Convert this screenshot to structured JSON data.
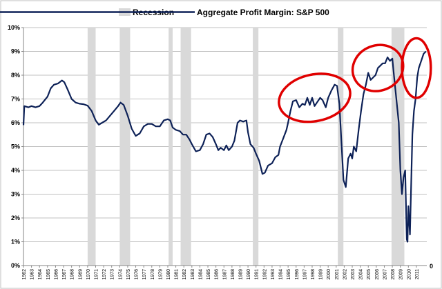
{
  "chart_data": {
    "type": "line",
    "title": "",
    "xlabel": "",
    "ylabel": "",
    "legend": {
      "placement": "top",
      "entries": [
        {
          "name": "Recession",
          "kind": "band",
          "color": "#d9d9d9"
        },
        {
          "name": "Aggregate Profit Margin: S&P 500",
          "kind": "line",
          "color": "#0d2157"
        }
      ]
    },
    "xlim": [
      1962,
      2012.3
    ],
    "ylim": [
      0,
      10
    ],
    "y_ticks": [
      "0%",
      "1%",
      "2%",
      "3%",
      "4%",
      "5%",
      "6%",
      "7%",
      "8%",
      "9%",
      "10%"
    ],
    "x_ticks": [
      "1962",
      "1963",
      "1964",
      "1965",
      "1966",
      "1967",
      "1968",
      "1969",
      "1970",
      "1971",
      "1972",
      "1973",
      "1974",
      "1975",
      "1976",
      "1977",
      "1978",
      "1979",
      "1980",
      "1981",
      "1982",
      "1983",
      "1984",
      "1985",
      "1986",
      "1987",
      "1988",
      "1989",
      "1990",
      "1991",
      "1992",
      "1993",
      "1994",
      "1995",
      "1996",
      "1997",
      "1998",
      "1999",
      "2000",
      "2001",
      "2002",
      "2003",
      "2004",
      "2005",
      "2006",
      "2007",
      "2008",
      "2009",
      "2010",
      "2011"
    ],
    "right_axis_label": "0",
    "grid": true,
    "recessions": [
      [
        1970.0,
        1971.0
      ],
      [
        1974.0,
        1975.3
      ],
      [
        1980.1,
        1980.6
      ],
      [
        1981.6,
        1982.9
      ],
      [
        1990.6,
        1991.3
      ],
      [
        2001.2,
        2001.9
      ],
      [
        2007.9,
        2009.5
      ]
    ],
    "series": [
      {
        "name": "Aggregate Profit Margin: S&P 500",
        "color": "#0d2157",
        "points": [
          [
            1962.0,
            5.9
          ],
          [
            1962.1,
            6.7
          ],
          [
            1962.6,
            6.65
          ],
          [
            1963.0,
            6.7
          ],
          [
            1963.5,
            6.65
          ],
          [
            1964.0,
            6.7
          ],
          [
            1964.4,
            6.85
          ],
          [
            1965.0,
            7.1
          ],
          [
            1965.4,
            7.45
          ],
          [
            1965.8,
            7.6
          ],
          [
            1966.3,
            7.65
          ],
          [
            1966.8,
            7.78
          ],
          [
            1967.1,
            7.7
          ],
          [
            1967.5,
            7.4
          ],
          [
            1968.0,
            7.0
          ],
          [
            1968.5,
            6.85
          ],
          [
            1969.0,
            6.8
          ],
          [
            1969.5,
            6.78
          ],
          [
            1970.0,
            6.72
          ],
          [
            1970.5,
            6.5
          ],
          [
            1971.0,
            6.1
          ],
          [
            1971.4,
            5.92
          ],
          [
            1971.8,
            6.0
          ],
          [
            1972.3,
            6.1
          ],
          [
            1972.8,
            6.3
          ],
          [
            1973.3,
            6.5
          ],
          [
            1973.8,
            6.7
          ],
          [
            1974.1,
            6.85
          ],
          [
            1974.5,
            6.75
          ],
          [
            1975.0,
            6.3
          ],
          [
            1975.5,
            5.75
          ],
          [
            1976.0,
            5.45
          ],
          [
            1976.5,
            5.55
          ],
          [
            1977.0,
            5.85
          ],
          [
            1977.5,
            5.95
          ],
          [
            1978.0,
            5.95
          ],
          [
            1978.5,
            5.85
          ],
          [
            1979.0,
            5.85
          ],
          [
            1979.5,
            6.1
          ],
          [
            1980.0,
            6.15
          ],
          [
            1980.3,
            6.1
          ],
          [
            1980.6,
            5.8
          ],
          [
            1981.0,
            5.7
          ],
          [
            1981.5,
            5.65
          ],
          [
            1981.9,
            5.5
          ],
          [
            1982.3,
            5.5
          ],
          [
            1982.7,
            5.3
          ],
          [
            1983.0,
            5.1
          ],
          [
            1983.5,
            4.8
          ],
          [
            1984.0,
            4.85
          ],
          [
            1984.4,
            5.1
          ],
          [
            1984.8,
            5.5
          ],
          [
            1985.2,
            5.55
          ],
          [
            1985.6,
            5.4
          ],
          [
            1986.0,
            5.1
          ],
          [
            1986.3,
            4.85
          ],
          [
            1986.6,
            4.95
          ],
          [
            1987.0,
            4.85
          ],
          [
            1987.3,
            5.05
          ],
          [
            1987.6,
            4.85
          ],
          [
            1988.0,
            5.0
          ],
          [
            1988.3,
            5.25
          ],
          [
            1988.7,
            6.0
          ],
          [
            1989.0,
            6.1
          ],
          [
            1989.4,
            6.05
          ],
          [
            1989.8,
            6.1
          ],
          [
            1990.0,
            5.6
          ],
          [
            1990.3,
            5.1
          ],
          [
            1990.7,
            4.95
          ],
          [
            1991.0,
            4.7
          ],
          [
            1991.4,
            4.4
          ],
          [
            1991.8,
            3.85
          ],
          [
            1992.1,
            3.9
          ],
          [
            1992.5,
            4.2
          ],
          [
            1993.0,
            4.3
          ],
          [
            1993.4,
            4.55
          ],
          [
            1993.8,
            4.65
          ],
          [
            1994.0,
            5.0
          ],
          [
            1994.4,
            5.35
          ],
          [
            1994.8,
            5.7
          ],
          [
            1995.0,
            6.0
          ],
          [
            1995.3,
            6.5
          ],
          [
            1995.6,
            6.9
          ],
          [
            1996.0,
            6.95
          ],
          [
            1996.4,
            6.65
          ],
          [
            1996.8,
            6.8
          ],
          [
            1997.1,
            6.75
          ],
          [
            1997.4,
            7.05
          ],
          [
            1997.7,
            6.75
          ],
          [
            1998.0,
            7.05
          ],
          [
            1998.3,
            6.7
          ],
          [
            1998.6,
            6.85
          ],
          [
            1999.0,
            7.05
          ],
          [
            1999.3,
            6.95
          ],
          [
            1999.7,
            6.65
          ],
          [
            2000.0,
            7.05
          ],
          [
            2000.4,
            7.35
          ],
          [
            2000.8,
            7.6
          ],
          [
            2001.1,
            7.55
          ],
          [
            2001.4,
            6.8
          ],
          [
            2001.6,
            5.5
          ],
          [
            2001.9,
            3.6
          ],
          [
            2002.2,
            3.3
          ],
          [
            2002.5,
            4.5
          ],
          [
            2002.8,
            4.7
          ],
          [
            2003.0,
            4.5
          ],
          [
            2003.2,
            5.0
          ],
          [
            2003.5,
            4.8
          ],
          [
            2003.8,
            5.7
          ],
          [
            2004.1,
            6.5
          ],
          [
            2004.4,
            7.2
          ],
          [
            2004.7,
            7.6
          ],
          [
            2005.0,
            8.1
          ],
          [
            2005.3,
            7.8
          ],
          [
            2005.6,
            7.9
          ],
          [
            2005.9,
            8.0
          ],
          [
            2006.2,
            8.3
          ],
          [
            2006.5,
            8.4
          ],
          [
            2006.8,
            8.5
          ],
          [
            2007.1,
            8.5
          ],
          [
            2007.4,
            8.75
          ],
          [
            2007.7,
            8.6
          ],
          [
            2008.0,
            8.7
          ],
          [
            2008.2,
            8.0
          ],
          [
            2008.5,
            7.0
          ],
          [
            2008.8,
            6.0
          ],
          [
            2009.0,
            4.0
          ],
          [
            2009.2,
            3.0
          ],
          [
            2009.4,
            3.7
          ],
          [
            2009.6,
            4.0
          ],
          [
            2009.8,
            1.1
          ],
          [
            2009.9,
            1.0
          ],
          [
            2010.0,
            2.5
          ],
          [
            2010.2,
            1.3
          ],
          [
            2010.5,
            5.5
          ],
          [
            2010.7,
            6.5
          ],
          [
            2010.9,
            7.0
          ],
          [
            2011.1,
            7.9
          ],
          [
            2011.3,
            8.3
          ],
          [
            2011.6,
            8.6
          ],
          [
            2011.9,
            8.9
          ],
          [
            2012.2,
            9.0
          ]
        ]
      }
    ],
    "annotations": [
      {
        "type": "ellipse",
        "color": "#e00000",
        "cx": 1998.3,
        "cy": 7.05,
        "rx": 4.5,
        "ry": 0.98,
        "rotate": -12
      },
      {
        "type": "ellipse",
        "color": "#e00000",
        "cx": 2006.2,
        "cy": 8.3,
        "rx": 3.2,
        "ry": 0.95,
        "rotate": -22
      },
      {
        "type": "ellipse",
        "color": "#e00000",
        "cx": 2011.0,
        "cy": 8.3,
        "rx": 1.8,
        "ry": 1.25,
        "rotate": 0
      }
    ]
  }
}
